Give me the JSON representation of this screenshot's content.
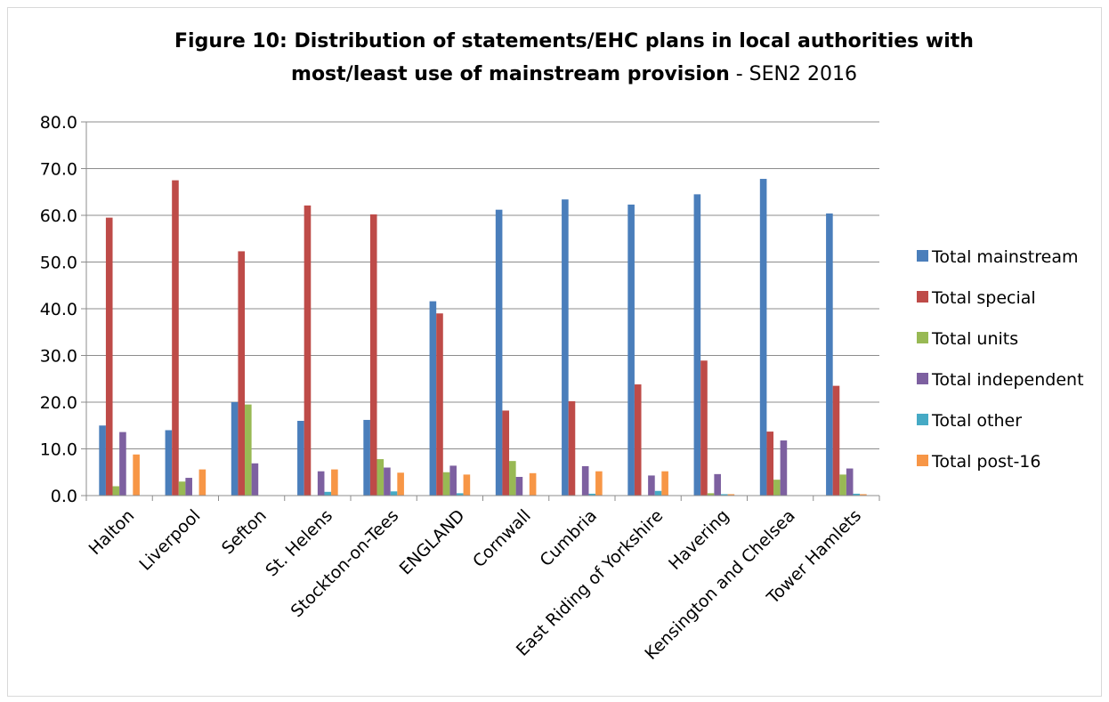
{
  "chart_data": {
    "type": "bar",
    "title_bold_line1": "Figure 10: Distribution of statements/EHC plans in local authorities with",
    "title_bold_line2": "most/least use of mainstream provision",
    "title_rest": " - SEN2 2016",
    "xlabel": "",
    "ylabel": "",
    "ylim": [
      0,
      80
    ],
    "yticks": [
      "0.0",
      "10.0",
      "20.0",
      "30.0",
      "40.0",
      "50.0",
      "60.0",
      "70.0",
      "80.0"
    ],
    "grid": true,
    "legend_position": "right",
    "categories": [
      "Halton",
      "Liverpool",
      "Sefton",
      "St. Helens",
      "Stockton-on-Tees",
      "ENGLAND",
      "Cornwall",
      "Cumbria",
      "East Riding of Yorkshire",
      "Havering",
      "Kensington and Chelsea",
      "Tower Hamlets"
    ],
    "series": [
      {
        "name": "Total mainstream",
        "color": "#4a7ebb",
        "values": [
          15.0,
          14.0,
          20.0,
          16.0,
          16.2,
          41.6,
          61.2,
          63.4,
          62.3,
          64.5,
          67.8,
          60.4
        ]
      },
      {
        "name": "Total special",
        "color": "#be4b48",
        "values": [
          59.5,
          67.5,
          52.3,
          62.1,
          60.2,
          39.0,
          18.2,
          20.2,
          23.8,
          28.9,
          13.7,
          23.5
        ]
      },
      {
        "name": "Total units",
        "color": "#98b954",
        "values": [
          2.0,
          3.0,
          19.5,
          0.0,
          7.8,
          5.0,
          7.4,
          0.0,
          0.0,
          0.5,
          3.4,
          4.5
        ]
      },
      {
        "name": "Total independent",
        "color": "#7d60a0",
        "values": [
          13.6,
          3.8,
          6.9,
          5.2,
          6.0,
          6.4,
          4.0,
          6.3,
          4.3,
          4.6,
          11.8,
          5.8
        ]
      },
      {
        "name": "Total other",
        "color": "#46aac5",
        "values": [
          0.0,
          0.0,
          0.0,
          0.8,
          0.9,
          0.5,
          0.0,
          0.4,
          1.0,
          0.3,
          0.0,
          0.4
        ]
      },
      {
        "name": "Total post-16",
        "color": "#f79646",
        "values": [
          8.8,
          5.6,
          0.0,
          5.6,
          4.9,
          4.5,
          4.8,
          5.2,
          5.2,
          0.3,
          0.0,
          0.3
        ]
      }
    ]
  }
}
